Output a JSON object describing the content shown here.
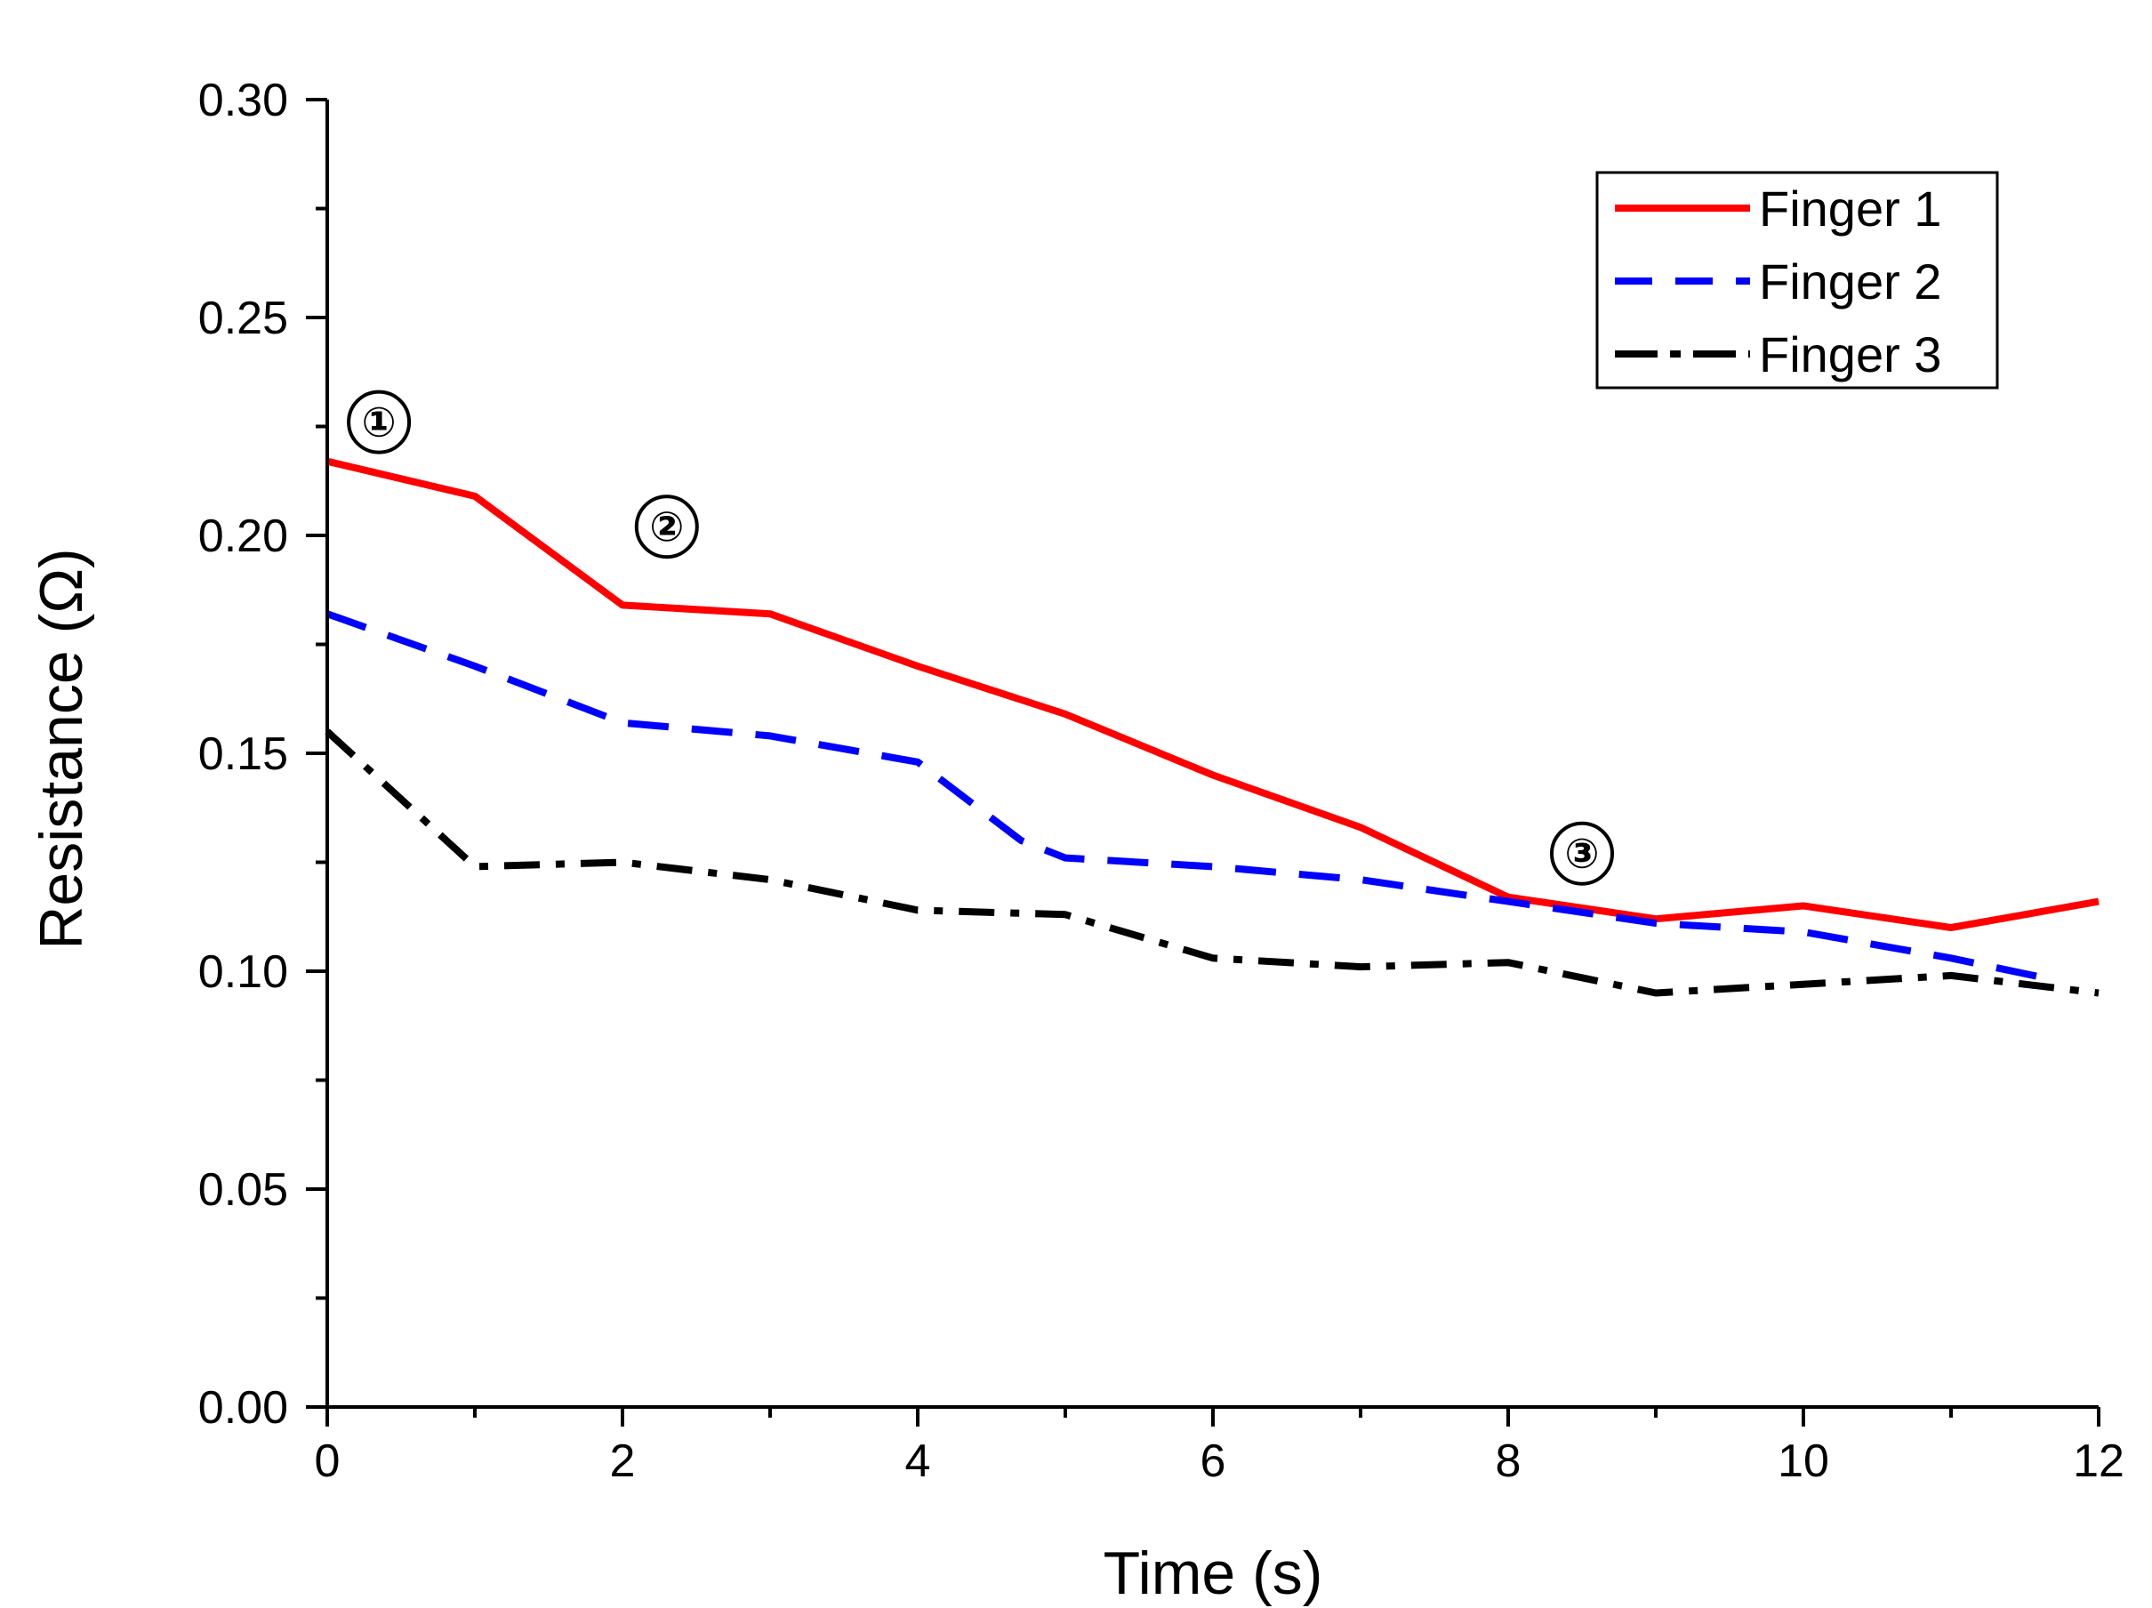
{
  "chart_data": {
    "type": "line",
    "title": "",
    "xlabel": "Time (s)",
    "ylabel": "Resistance (Ω)",
    "xlim": [
      0,
      12
    ],
    "ylim": [
      0,
      0.3
    ],
    "xticks": [
      0,
      2,
      4,
      6,
      8,
      10,
      12
    ],
    "xtick_labels": [
      "0",
      "2",
      "4",
      "6",
      "8",
      "10",
      "12"
    ],
    "x_minor_ticks": [
      1,
      3,
      5,
      7,
      9,
      11
    ],
    "yticks": [
      0,
      0.05,
      0.1,
      0.15,
      0.2,
      0.25,
      0.3
    ],
    "ytick_labels": [
      "0.00",
      "0.05",
      "0.10",
      "0.15",
      "0.20",
      "0.25",
      "0.30"
    ],
    "y_minor_ticks": [
      0.025,
      0.075,
      0.125,
      0.175,
      0.225,
      0.275
    ],
    "grid": false,
    "legend_position": "top-right",
    "series": [
      {
        "name": "Finger 1",
        "color": "#ff0000",
        "style": "solid",
        "x": [
          0,
          1,
          2,
          3,
          4,
          5,
          6,
          7,
          8,
          9,
          10,
          11,
          12
        ],
        "values": [
          0.217,
          0.209,
          0.184,
          0.182,
          0.17,
          0.159,
          0.145,
          0.133,
          0.117,
          0.112,
          0.115,
          0.11,
          0.116
        ]
      },
      {
        "name": "Finger 2",
        "color": "#0000ff",
        "style": "dash",
        "x": [
          0,
          1,
          2,
          3,
          4,
          4.7,
          5,
          6,
          7,
          8,
          9,
          10,
          11,
          11.7
        ],
        "values": [
          0.182,
          0.17,
          0.157,
          0.154,
          0.148,
          0.13,
          0.126,
          0.124,
          0.121,
          0.116,
          0.111,
          0.109,
          0.103,
          0.098
        ]
      },
      {
        "name": "Finger 3",
        "color": "#000000",
        "style": "dashdot",
        "x": [
          0,
          1,
          2,
          3,
          4,
          5,
          6,
          7,
          8,
          9,
          10,
          11,
          12
        ],
        "values": [
          0.155,
          0.124,
          0.125,
          0.121,
          0.114,
          0.113,
          0.103,
          0.101,
          0.102,
          0.095,
          0.097,
          0.099,
          0.095
        ]
      }
    ],
    "annotations": [
      {
        "label": "①",
        "x": 0.35,
        "y": 0.226
      },
      {
        "label": "②",
        "x": 2.3,
        "y": 0.202
      },
      {
        "label": "③",
        "x": 8.5,
        "y": 0.127
      }
    ]
  }
}
